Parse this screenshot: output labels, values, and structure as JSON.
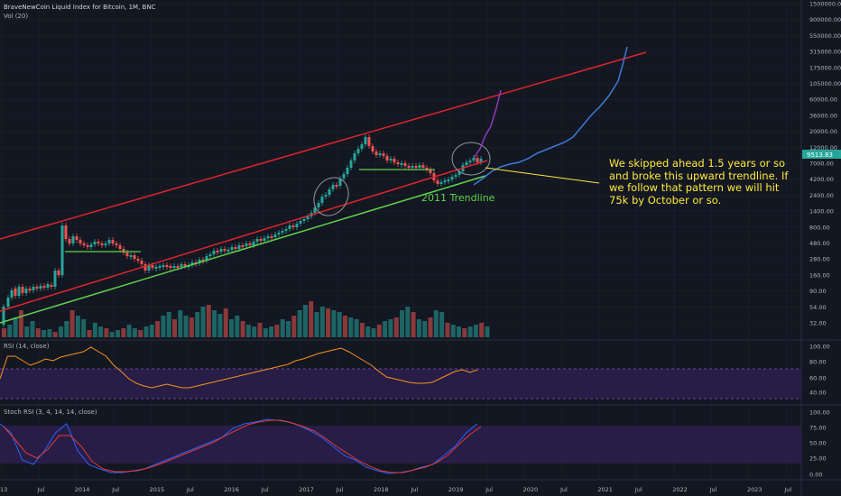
{
  "header": {
    "title": "BraveNewCoin Liquid Index for Bitcoin, 1M, BNC",
    "vol_label": "Vol (20)"
  },
  "annotations": {
    "trendline_label": "2011 Trendline",
    "note": "We skipped ahead 1.5 years or so and broke this upward trendline. If we follow that pattern we will hit 75k by October or so."
  },
  "price_badge": "9513.83",
  "rsi_label": "RSI (14, close)",
  "stoch_label": "Stoch RSI (3, 4, 14, 14, close)",
  "colors": {
    "background": "#131722",
    "up": "#26a69a",
    "down": "#ef5350",
    "channel": "#e0242c",
    "trendline": "#5fd34a",
    "projection": "#3d7bd9",
    "fractal": "#8e3bb8",
    "note": "#ffeb3b",
    "rsi": "#f7931a",
    "stoch_k": "#2962ff",
    "stoch_d": "#e53935",
    "band": "#2a1e4a"
  },
  "chart_data": [
    {
      "type": "candlestick",
      "scale": "log",
      "price_axis_ticks": [
        "1500000.00",
        "900000.00",
        "550000.00",
        "315000.00",
        "175000.00",
        "105000.00",
        "60000.00",
        "36000.00",
        "20000.00",
        "12000.00",
        "7000.00",
        "4200.00",
        "2400.00",
        "1400.00",
        "800.00",
        "480.00",
        "280.00",
        "160.00",
        "90.00",
        "54.00",
        "32.00"
      ],
      "x_ticks": [
        "13",
        "Jul",
        "2014",
        "Jul",
        "2015",
        "Jul",
        "2016",
        "Jul",
        "2017",
        "Jul",
        "2018",
        "Jul",
        "2019",
        "Jul",
        "2020",
        "Jul",
        "2021",
        "Jul",
        "2022",
        "Jul",
        "2023",
        "Jul"
      ],
      "last_price": 9513.83
    },
    {
      "type": "line",
      "title": "RSI (14, close)",
      "y_ticks": [
        "100.00",
        "80.00",
        "60.00",
        "40.00"
      ],
      "band": [
        30,
        70
      ]
    },
    {
      "type": "line",
      "title": "Stoch RSI (3, 4, 14, 14, close)",
      "y_ticks": [
        "100.00",
        "75.00",
        "50.00",
        "25.00",
        "0.00"
      ],
      "band": [
        20,
        80
      ]
    }
  ]
}
